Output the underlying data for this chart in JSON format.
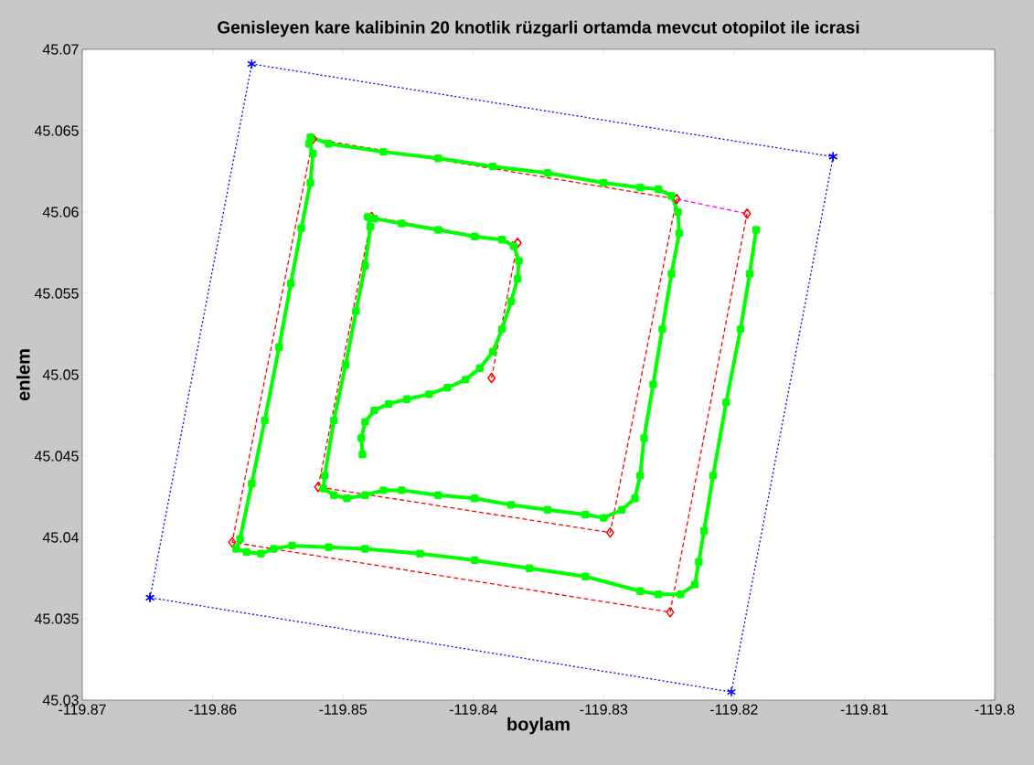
{
  "chart_data": {
    "type": "line",
    "title": "Genisleyen kare kalibinin 20 knotlik rüzgarli ortamda mevcut otopilot ile icrasi",
    "xlabel": "boylam",
    "ylabel": "enlem",
    "xlim": [
      -119.87,
      -119.8
    ],
    "ylim": [
      45.03,
      45.07
    ],
    "xticks": [
      -119.87,
      -119.86,
      -119.85,
      -119.84,
      -119.83,
      -119.82,
      -119.81,
      -119.8
    ],
    "yticks": [
      45.03,
      45.035,
      45.04,
      45.045,
      45.05,
      45.055,
      45.06,
      45.065,
      45.07
    ],
    "series": [
      {
        "color": "#0000ff",
        "line_style": "dotted",
        "marker": "cross",
        "x": [
          -119.8648,
          -119.857,
          -119.8124
        ],
        "values": [
          45.0363,
          45.0691,
          45.0634
        ]
      },
      {
        "color": "#0000ff",
        "line_style": "dotted",
        "marker": "cross",
        "x": [
          -119.8124,
          -119.8202,
          -119.8648
        ],
        "values": [
          45.0634,
          45.0305,
          45.0363
        ]
      },
      {
        "color": "#ff00ff",
        "line_style": "dashed",
        "marker": "none",
        "x": [
          -119.8244,
          -119.819
        ],
        "values": [
          45.0608,
          45.0599
        ]
      },
      {
        "color": "#ff0000",
        "line_style": "dashed",
        "marker": "diamond",
        "x": [
          -119.8386,
          -119.8366,
          -119.8478,
          -119.8519,
          -119.8295,
          -119.8244,
          -119.8523,
          -119.8585,
          -119.8249,
          -119.819
        ],
        "values": [
          45.0498,
          45.0581,
          45.0597,
          45.0431,
          45.0403,
          45.0608,
          45.0645,
          45.0397,
          45.0354,
          45.0599
        ]
      },
      {
        "color": "#00ff00",
        "line_style": "solid",
        "marker": "square",
        "x": [
          -119.8485,
          -119.8486,
          -119.8483,
          -119.8476,
          -119.8465,
          -119.8451,
          -119.8434,
          -119.842,
          -119.8406,
          -119.8395,
          -119.8385,
          -119.8378,
          -119.8371,
          -119.8366,
          -119.8365,
          -119.8369,
          -119.8378,
          -119.8399,
          -119.8427,
          -119.8455,
          -119.8476,
          -119.8481,
          -119.8479,
          -119.8483,
          -119.849,
          -119.8498,
          -119.8507,
          -119.8514,
          -119.8515,
          -119.8507,
          -119.8497,
          -119.8483,
          -119.8469,
          -119.8455,
          -119.8427,
          -119.8399,
          -119.8371,
          -119.8343,
          -119.8314,
          -119.83,
          -119.8286,
          -119.8276,
          -119.8272,
          -119.8269,
          -119.8262,
          -119.8255,
          -119.8248,
          -119.8242,
          -119.8243,
          -119.8248,
          -119.8258,
          -119.8272,
          -119.83,
          -119.8343,
          -119.8385,
          -119.8427,
          -119.8469,
          -119.8511,
          -119.8525,
          -119.8526,
          -119.8523,
          -119.8525,
          -119.8532,
          -119.854,
          -119.8549,
          -119.856,
          -119.857,
          -119.8579,
          -119.8582,
          -119.8574,
          -119.8563,
          -119.8553,
          -119.8539,
          -119.8511,
          -119.8483,
          -119.8441,
          -119.8399,
          -119.8357,
          -119.8314,
          -119.8272,
          -119.8258,
          -119.8241,
          -119.823,
          -119.8227,
          -119.8223,
          -119.8216,
          -119.8206,
          -119.8195,
          -119.8188,
          -119.8183
        ],
        "values": [
          45.0451,
          45.0461,
          45.0471,
          45.0478,
          45.0482,
          45.0485,
          45.0488,
          45.0492,
          45.0497,
          45.0504,
          45.0514,
          45.0528,
          45.0545,
          45.0559,
          45.057,
          45.0579,
          45.0583,
          45.0585,
          45.0589,
          45.0593,
          45.0596,
          45.0597,
          45.0591,
          45.0567,
          45.0539,
          45.0506,
          45.0472,
          45.0438,
          45.043,
          45.0426,
          45.0424,
          45.0426,
          45.0429,
          45.0429,
          45.0426,
          45.0424,
          45.042,
          45.0417,
          45.0414,
          45.0412,
          45.0417,
          45.0424,
          45.0438,
          45.0461,
          45.0494,
          45.0528,
          45.0562,
          45.0587,
          45.06,
          45.061,
          45.0614,
          45.0615,
          45.0618,
          45.0624,
          45.0628,
          45.0633,
          45.0637,
          45.0642,
          45.0646,
          45.0642,
          45.0636,
          45.0618,
          45.059,
          45.0556,
          45.0517,
          45.0472,
          45.0433,
          45.0399,
          45.0393,
          45.0391,
          45.039,
          45.0393,
          45.0395,
          45.0394,
          45.0393,
          45.039,
          45.0386,
          45.0381,
          45.0376,
          45.0367,
          45.0365,
          45.0365,
          45.0371,
          45.0385,
          45.0404,
          45.0438,
          45.0483,
          45.0528,
          45.0562,
          45.0589
        ]
      }
    ]
  }
}
